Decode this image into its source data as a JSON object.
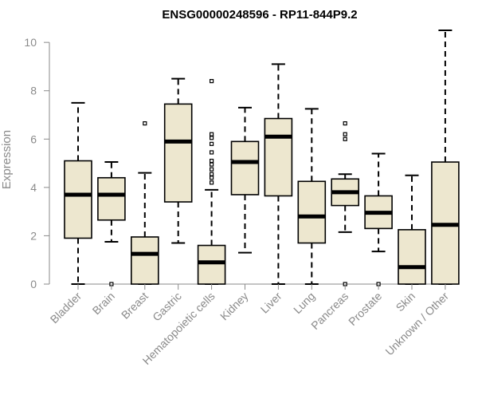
{
  "chart_data": {
    "type": "boxplot",
    "title": "ENSG00000248596 - RP11-844P9.2",
    "xlabel": "",
    "ylabel": "Expression",
    "ylim": [
      0,
      10.5
    ],
    "yticks": [
      0,
      2,
      4,
      6,
      8,
      10
    ],
    "box_color": "#ede7cf",
    "line_color": "#000000",
    "axis_color": "#8a8a8a",
    "categories": [
      "Bladder",
      "Brain",
      "Breast",
      "Gastric",
      "Hematopoietic cells",
      "Kidney",
      "Liver",
      "Lung",
      "Pancreas",
      "Prostate",
      "Skin",
      "Unknown / Other"
    ],
    "boxes": [
      {
        "name": "Bladder",
        "whisker_low": 0.0,
        "q1": 1.9,
        "median": 3.7,
        "q3": 5.1,
        "whisker_high": 7.5,
        "outliers": []
      },
      {
        "name": "Brain",
        "whisker_low": 1.75,
        "q1": 2.65,
        "median": 3.7,
        "q3": 4.4,
        "whisker_high": 5.05,
        "outliers": [
          0.0
        ]
      },
      {
        "name": "Breast",
        "whisker_low": 0.0,
        "q1": 0.0,
        "median": 1.25,
        "q3": 1.95,
        "whisker_high": 4.6,
        "outliers": [
          6.65
        ]
      },
      {
        "name": "Gastric",
        "whisker_low": 1.7,
        "q1": 3.4,
        "median": 5.9,
        "q3": 7.45,
        "whisker_high": 8.5,
        "outliers": []
      },
      {
        "name": "Hematopoietic cells",
        "whisker_low": 0.0,
        "q1": 0.0,
        "median": 0.9,
        "q3": 1.6,
        "whisker_high": 3.9,
        "outliers": [
          4.2,
          4.4,
          4.55,
          4.75,
          4.95,
          5.1,
          5.45,
          5.8,
          6.05,
          6.2,
          8.4
        ]
      },
      {
        "name": "Kidney",
        "whisker_low": 1.3,
        "q1": 3.7,
        "median": 5.05,
        "q3": 5.9,
        "whisker_high": 7.3,
        "outliers": []
      },
      {
        "name": "Liver",
        "whisker_low": 0.0,
        "q1": 3.65,
        "median": 6.1,
        "q3": 6.85,
        "whisker_high": 9.1,
        "outliers": []
      },
      {
        "name": "Lung",
        "whisker_low": 0.0,
        "q1": 1.7,
        "median": 2.8,
        "q3": 4.25,
        "whisker_high": 7.25,
        "outliers": []
      },
      {
        "name": "Pancreas",
        "whisker_low": 2.15,
        "q1": 3.25,
        "median": 3.8,
        "q3": 4.35,
        "whisker_high": 4.55,
        "outliers": [
          0.0,
          6.0,
          6.2,
          6.65
        ]
      },
      {
        "name": "Prostate",
        "whisker_low": 1.35,
        "q1": 2.3,
        "median": 2.95,
        "q3": 3.65,
        "whisker_high": 5.4,
        "outliers": [
          0.0
        ]
      },
      {
        "name": "Skin",
        "whisker_low": 0.0,
        "q1": 0.0,
        "median": 0.7,
        "q3": 2.25,
        "whisker_high": 4.5,
        "outliers": []
      },
      {
        "name": "Unknown / Other",
        "whisker_low": 0.0,
        "q1": 0.0,
        "median": 2.45,
        "q3": 5.05,
        "whisker_high": 10.5,
        "outliers": []
      }
    ]
  }
}
